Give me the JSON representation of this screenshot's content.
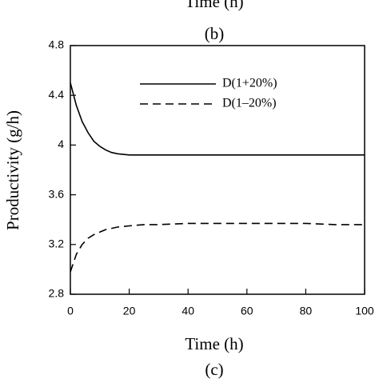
{
  "chart_data": {
    "type": "line",
    "title": "(b)",
    "annotations": [
      "Time (h)",
      "(c)"
    ],
    "xlabel": "Time (h)",
    "ylabel": "Productivity (g/h)",
    "x": [
      0,
      2,
      4,
      6,
      8,
      10,
      12,
      14,
      16,
      20,
      25,
      30,
      40,
      50,
      60,
      70,
      80,
      90,
      100
    ],
    "series": [
      {
        "name": "D(1+20%)",
        "color": "#000000",
        "dash": "solid",
        "values": [
          4.5,
          4.32,
          4.19,
          4.1,
          4.03,
          3.99,
          3.96,
          3.94,
          3.93,
          3.92,
          3.92,
          3.92,
          3.92,
          3.92,
          3.92,
          3.92,
          3.92,
          3.92,
          3.92
        ]
      },
      {
        "name": "D(1–20%)",
        "color": "#000000",
        "dash": "dashed",
        "values": [
          2.98,
          3.12,
          3.2,
          3.25,
          3.28,
          3.3,
          3.32,
          3.33,
          3.34,
          3.35,
          3.36,
          3.36,
          3.37,
          3.37,
          3.37,
          3.37,
          3.37,
          3.36,
          3.36
        ]
      }
    ],
    "xlim": [
      0,
      100
    ],
    "xticks": [
      0,
      20,
      40,
      60,
      80,
      100
    ],
    "ylim": [
      2.8,
      4.8
    ],
    "yticks": [
      2.8,
      3.2,
      3.6,
      4,
      4.4,
      4.8
    ],
    "legend": "upper right",
    "grid": false
  }
}
